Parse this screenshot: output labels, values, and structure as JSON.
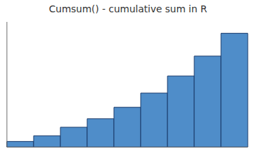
{
  "chart_data": {
    "type": "bar",
    "title": "Cumsum() - cumulative sum in R",
    "categories": [
      null,
      null,
      null,
      null,
      null,
      null,
      null,
      null,
      null
    ],
    "values": [
      1,
      2,
      3.5,
      5,
      7,
      9.5,
      12.5,
      16,
      20
    ],
    "color": "#4F8DC9",
    "ylim": [
      0,
      22
    ],
    "tick_labels": false
  }
}
